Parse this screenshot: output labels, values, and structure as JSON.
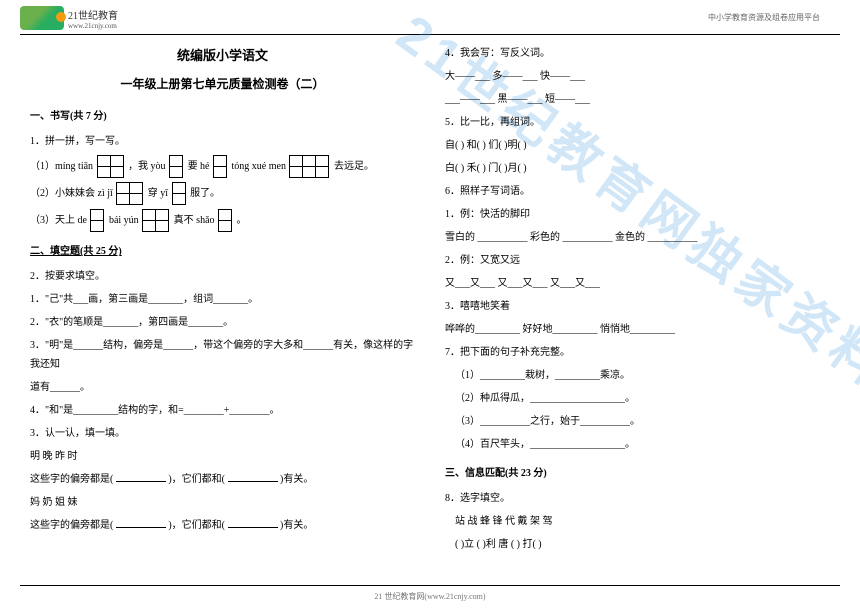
{
  "header": {
    "brand_top": "21世纪教育",
    "brand_url": "www.21cnjy.com",
    "top_right": "中小学教育资源及组卷应用平台"
  },
  "title": "统编版小学语文",
  "subtitle": "一年级上册第七单元质量检测卷（二）",
  "sec1": {
    "heading": "一、书写(共 7 分)",
    "q1": "1．拼一拼，写一写。",
    "q1_1a": "（1）míng  tiān",
    "q1_1b": "，我 yòu",
    "q1_1c": "要 hé",
    "q1_1d": "tóng  xué men",
    "q1_1e": "去远足。",
    "q1_2a": "（2）小妹妹会 zì jǐ",
    "q1_2b": "穿 yī",
    "q1_2c": "服了。",
    "q1_3a": "（3）天上 de",
    "q1_3b": "bái  yún",
    "q1_3c": "真不 shǎo",
    "q1_3d": "。"
  },
  "sec2": {
    "heading": "二、填空题(共 25 分)",
    "q2": "2．按要求填空。",
    "q2_1": "1．\"己\"共___画，第三画是_______，组词_______。",
    "q2_2": "2．\"衣\"的笔顺是_______，第四画是_______。",
    "q2_3a": "3．\"明\"是______结构，偏旁是______，带这个偏旁的字大多和______有关，像这样的字我还知",
    "q2_3b": "道有______。",
    "q2_4": "4．\"和\"是_________结构的字，和=________+________。",
    "q3": "3．认一认，填一填。",
    "q3_a": "明  晚  昨  时",
    "q3_b1": "这些字的偏旁都是(",
    "q3_b2": ")，它们都和(",
    "q3_b3": ")有关。",
    "q3_c": "妈  奶  姐  妹",
    "q3_d1": "这些字的偏旁都是(",
    "q3_d2": ")，它们都和(",
    "q3_d3": ")有关。"
  },
  "right": {
    "q4": "4．我会写：写反义词。",
    "q4_a": "大——___      多——___      快——___",
    "q4_b": "___——___      黑——___      短——___",
    "q5": "5．比一比，再组词。",
    "q5_a": "自(           )   和(           )   们(           )明(           )",
    "q5_b": "白(           )   禾(           )   门(           )月(           )",
    "q6": "6．照样子写词语。",
    "q6_1": "1．例：快活的脚印",
    "q6_1a": "雪白的 __________    彩色的  __________    金色的 __________",
    "q6_2": "2．例：又宽又远",
    "q6_2a": "又___又___      又___又___      又___又___",
    "q6_3": "3．嘻嘻地笑着",
    "q6_3a": "哗哗的_________      好好地_________      悄悄地_________",
    "q7": "7．把下面的句子补充完整。",
    "q7_1": "（1）_________栽树，_________乘凉。",
    "q7_2": "（2）种瓜得瓜，___________________。",
    "q7_3": "（3）__________之行，始于__________。",
    "q7_4": "（4）百尺竿头，___________________。",
    "sec3": "三、信息匹配(共 23 分)",
    "q8": "8．选字填空。",
    "q8_a": "站  战        蜂  锋        代  戴        架  驾",
    "q8_b": "(           )立    (           )利     唐  (            )    打(           )"
  },
  "watermark": "21世纪教育网独家资料",
  "footer": "21 世纪教育网(www.21cnjy.com)"
}
